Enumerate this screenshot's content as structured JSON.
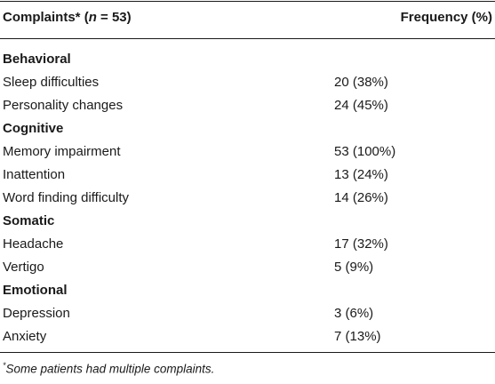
{
  "header": {
    "complaints_label": "Complaints*",
    "n_open": "(",
    "n_var": "n",
    "n_rest": " = 53)",
    "frequency_label": "Frequency (%)"
  },
  "sections": [
    {
      "title": "Behavioral",
      "rows": [
        {
          "label": "Sleep difficulties",
          "value": "20 (38%)"
        },
        {
          "label": "Personality changes",
          "value": "24 (45%)"
        }
      ]
    },
    {
      "title": "Cognitive",
      "rows": [
        {
          "label": "Memory impairment",
          "value": "53 (100%)"
        },
        {
          "label": "Inattention",
          "value": "13 (24%)"
        },
        {
          "label": "Word finding difficulty",
          "value": "14 (26%)"
        }
      ]
    },
    {
      "title": "Somatic",
      "rows": [
        {
          "label": "Headache",
          "value": "17 (32%)"
        },
        {
          "label": "Vertigo",
          "value": "5 (9%)"
        }
      ]
    },
    {
      "title": "Emotional",
      "rows": [
        {
          "label": "Depression",
          "value": "3 (6%)"
        },
        {
          "label": "Anxiety",
          "value": "7 (13%)"
        }
      ]
    }
  ],
  "footnote": {
    "marker": "*",
    "text": "Some patients had multiple complaints."
  }
}
